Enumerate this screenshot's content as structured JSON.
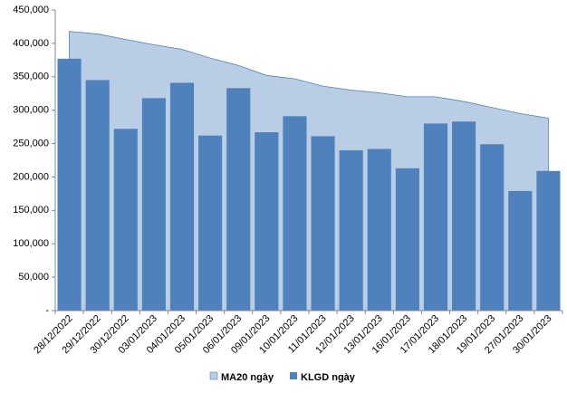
{
  "chart_data": {
    "type": "bar",
    "categories": [
      "28/12/2022",
      "29/12/2022",
      "30/12/2022",
      "03/01/2023",
      "04/01/2023",
      "05/01/2023",
      "06/01/2023",
      "09/01/2023",
      "10/01/2023",
      "11/01/2023",
      "12/01/2023",
      "13/01/2023",
      "16/01/2023",
      "17/01/2023",
      "18/01/2023",
      "19/01/2023",
      "27/01/2023",
      "30/01/2023"
    ],
    "series": [
      {
        "name": "MA20 ngày",
        "type": "area",
        "values": [
          418000,
          414000,
          406000,
          398000,
          391000,
          378000,
          367000,
          352000,
          347000,
          336000,
          330000,
          326000,
          320000,
          320000,
          313000,
          304000,
          295000,
          288000
        ]
      },
      {
        "name": "KLGD ngày",
        "type": "bar",
        "values": [
          377000,
          345000,
          272000,
          318000,
          341000,
          262000,
          333000,
          267000,
          291000,
          261000,
          240000,
          242000,
          213000,
          280000,
          283000,
          249000,
          179000,
          209000
        ]
      }
    ],
    "ylim": [
      0,
      450000
    ],
    "y_ticks": [
      "-",
      "50,000",
      "100,000",
      "150,000",
      "200,000",
      "250,000",
      "300,000",
      "350,000",
      "400,000",
      "450,000"
    ],
    "legend_position": "bottom",
    "grid": false,
    "colors": {
      "area_fill": "#B9CDE5",
      "area_stroke": "#4F81BD",
      "bar_fill": "#4F81BD",
      "axis": "#868686"
    }
  }
}
